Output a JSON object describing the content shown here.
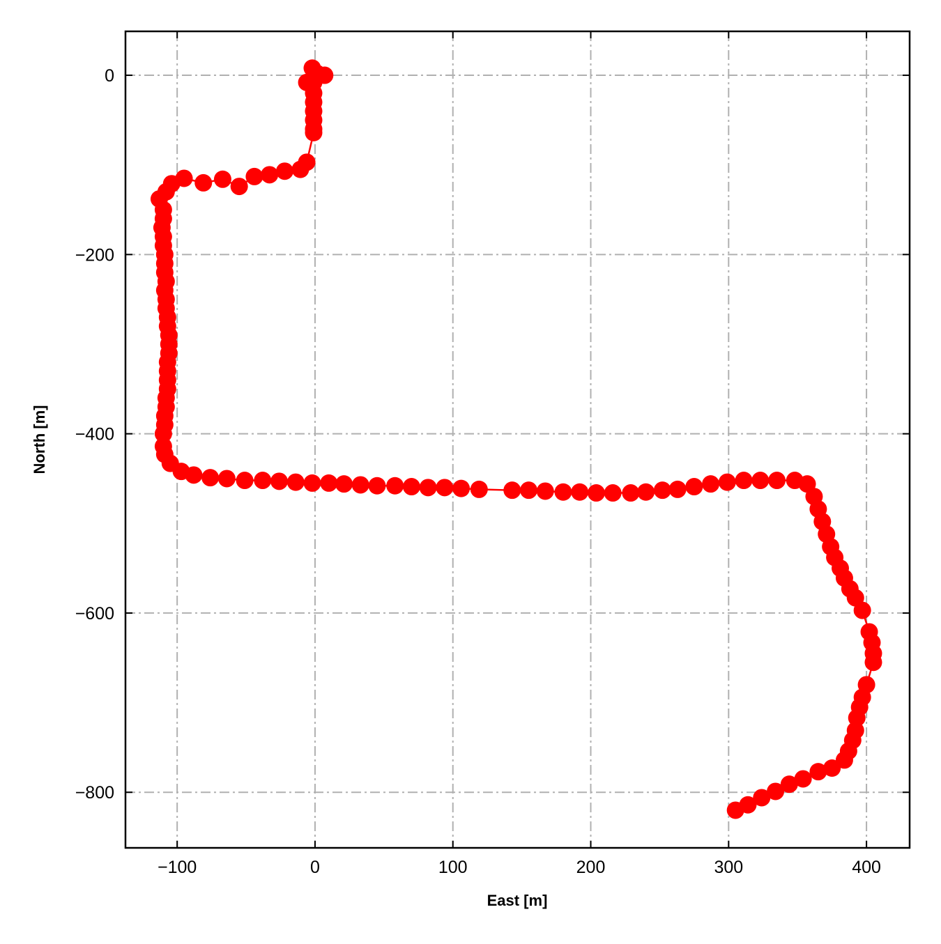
{
  "chart_data": {
    "type": "line",
    "title": "",
    "xlabel": "East [m]",
    "ylabel": "North [m]",
    "xlim": [
      -137.5,
      431.3
    ],
    "ylim": [
      -862,
      49
    ],
    "xticks": [
      -100,
      0,
      100,
      200,
      300,
      400
    ],
    "yticks": [
      0,
      -200,
      -400,
      -600,
      -800
    ],
    "xtick_labels": [
      "−100",
      "0",
      "100",
      "200",
      "300",
      "400"
    ],
    "ytick_labels": [
      "0",
      "−200",
      "−400",
      "−600",
      "−800"
    ],
    "grid": true,
    "grid_style": "dash-dot",
    "colors": {
      "series": "#ff0000",
      "grid": "#b0b0b0"
    },
    "series": [
      {
        "marker": "circle",
        "points": [
          [
            1.5,
            2
          ],
          [
            -2,
            8
          ],
          [
            7,
            0
          ],
          [
            -6,
            -8
          ],
          [
            -1,
            -8
          ],
          [
            -1,
            -20
          ],
          [
            -1,
            -30
          ],
          [
            -1,
            -40
          ],
          [
            -1,
            -50
          ],
          [
            -1,
            -60
          ],
          [
            -1,
            -64
          ],
          [
            -6,
            -97
          ],
          [
            -10.6,
            -105
          ],
          [
            -22,
            -107
          ],
          [
            -33,
            -111
          ],
          [
            -44,
            -113
          ],
          [
            -55,
            -124
          ],
          [
            -67,
            -116
          ],
          [
            -81,
            -120
          ],
          [
            -95,
            -115
          ],
          [
            -104,
            -121
          ],
          [
            -108,
            -130
          ],
          [
            -113,
            -138
          ],
          [
            -110,
            -150
          ],
          [
            -110,
            -160
          ],
          [
            -111,
            -170
          ],
          [
            -110,
            -180
          ],
          [
            -110,
            -190
          ],
          [
            -109,
            -200
          ],
          [
            -109,
            -210
          ],
          [
            -109,
            -220
          ],
          [
            -108,
            -230
          ],
          [
            -109,
            -240
          ],
          [
            -108,
            -250
          ],
          [
            -108,
            -260
          ],
          [
            -107,
            -270
          ],
          [
            -107,
            -280
          ],
          [
            -106,
            -290
          ],
          [
            -106,
            -300
          ],
          [
            -106,
            -310
          ],
          [
            -107,
            -320
          ],
          [
            -107,
            -330
          ],
          [
            -107,
            -340
          ],
          [
            -107,
            -350
          ],
          [
            -108,
            -360
          ],
          [
            -108,
            -370
          ],
          [
            -109,
            -380
          ],
          [
            -109,
            -390
          ],
          [
            -110,
            -400
          ],
          [
            -110,
            -414
          ],
          [
            -109,
            -423
          ],
          [
            -105,
            -433
          ],
          [
            -97,
            -442
          ],
          [
            -88,
            -446
          ],
          [
            -76,
            -449
          ],
          [
            -64,
            -450
          ],
          [
            -51,
            -452
          ],
          [
            -38,
            -452
          ],
          [
            -26,
            -453
          ],
          [
            -14,
            -454
          ],
          [
            -2,
            -455
          ],
          [
            10,
            -455
          ],
          [
            21,
            -456
          ],
          [
            33,
            -457
          ],
          [
            45,
            -458
          ],
          [
            58,
            -458
          ],
          [
            70,
            -459
          ],
          [
            82,
            -460
          ],
          [
            94,
            -460
          ],
          [
            106,
            -461
          ],
          [
            119,
            -462
          ],
          [
            143,
            -463
          ],
          [
            155,
            -463
          ],
          [
            167,
            -464
          ],
          [
            180,
            -465
          ],
          [
            192,
            -465
          ],
          [
            204,
            -466
          ],
          [
            216,
            -466
          ],
          [
            229,
            -466
          ],
          [
            240,
            -465
          ],
          [
            252,
            -463
          ],
          [
            263,
            -462
          ],
          [
            275,
            -459
          ],
          [
            287,
            -456
          ],
          [
            299,
            -454
          ],
          [
            311,
            -452
          ],
          [
            323,
            -452
          ],
          [
            335,
            -452
          ],
          [
            348,
            -452
          ],
          [
            357,
            -456
          ],
          [
            362,
            -470
          ],
          [
            365,
            -484
          ],
          [
            368,
            -498
          ],
          [
            371,
            -512
          ],
          [
            374,
            -526
          ],
          [
            377,
            -538
          ],
          [
            381,
            -550
          ],
          [
            384,
            -561
          ],
          [
            388,
            -573
          ],
          [
            392,
            -583
          ],
          [
            397,
            -597
          ],
          [
            402,
            -621
          ],
          [
            404,
            -633
          ],
          [
            405,
            -645
          ],
          [
            405,
            -655
          ],
          [
            400,
            -680
          ],
          [
            397,
            -694
          ],
          [
            395,
            -705
          ],
          [
            393,
            -717
          ],
          [
            392,
            -731
          ],
          [
            390,
            -742
          ],
          [
            387,
            -754
          ],
          [
            384,
            -764
          ],
          [
            375,
            -773
          ],
          [
            365,
            -777
          ],
          [
            354,
            -785
          ],
          [
            344,
            -791
          ],
          [
            334,
            -799
          ],
          [
            324,
            -806
          ],
          [
            314,
            -814
          ],
          [
            305,
            -820
          ]
        ]
      }
    ]
  }
}
